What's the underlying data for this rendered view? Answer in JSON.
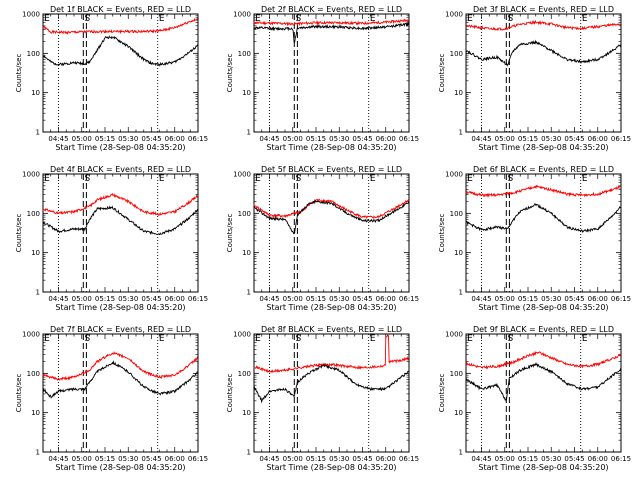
{
  "chart_data": [
    {
      "type": "line",
      "title": "Det 1f BLACK = Events, RED = LLD",
      "xlabel": "Start Time (28-Sep-08 04:35:20)",
      "ylabel": "Counts/sec",
      "yscale": "log",
      "ylim": [
        1,
        1000
      ],
      "xlim": [
        "04:35",
        "06:15"
      ],
      "yticks": [
        "1",
        "10",
        "100",
        "1000"
      ],
      "xticks": [
        "04:45",
        "05:00",
        "05:15",
        "05:30",
        "05:45",
        "06:00",
        "06:15"
      ],
      "markers": [
        "E",
        "S",
        "E"
      ],
      "dotted_lines": [
        "04:45",
        "05:49"
      ],
      "dashed_lines": [
        "05:01",
        "05:03"
      ],
      "series": [
        {
          "color": "#ff0000",
          "x": [
            "04:35",
            "04:40",
            "04:50",
            "05:00",
            "05:10",
            "05:20",
            "05:30",
            "05:40",
            "05:50",
            "06:00",
            "06:10",
            "06:15"
          ],
          "values": [
            480,
            350,
            340,
            350,
            360,
            360,
            360,
            360,
            370,
            450,
            650,
            720
          ]
        },
        {
          "color": "#000000",
          "x": [
            "04:35",
            "04:40",
            "04:45",
            "04:55",
            "05:02",
            "05:05",
            "05:10",
            "05:15",
            "05:20",
            "05:30",
            "05:40",
            "05:45",
            "05:50",
            "06:00",
            "06:10",
            "06:15"
          ],
          "values": [
            90,
            60,
            52,
            58,
            55,
            60,
            120,
            250,
            260,
            150,
            70,
            55,
            52,
            60,
            110,
            160
          ]
        }
      ]
    },
    {
      "type": "line",
      "title": "Det 2f BLACK = Events, RED = LLD",
      "xlabel": "Start Time (28-Sep-08 04:35:20)",
      "ylabel": "Counts/sec",
      "yscale": "log",
      "ylim": [
        1,
        1000
      ],
      "xlim": [
        "04:35",
        "06:15"
      ],
      "yticks": [
        "1",
        "10",
        "100",
        "1000"
      ],
      "xticks": [
        "04:45",
        "05:00",
        "05:15",
        "05:30",
        "05:45",
        "06:00",
        "06:15"
      ],
      "markers": [
        "E",
        "S",
        "E"
      ],
      "dotted_lines": [
        "04:45",
        "05:49"
      ],
      "dashed_lines": [
        "05:01",
        "05:03"
      ],
      "series": [
        {
          "color": "#ff0000",
          "x": [
            "04:35",
            "04:50",
            "05:00",
            "05:15",
            "05:30",
            "05:45",
            "06:00",
            "06:15"
          ],
          "values": [
            600,
            580,
            560,
            600,
            600,
            580,
            620,
            700
          ]
        },
        {
          "color": "#000000",
          "x": [
            "04:35",
            "04:50",
            "05:00",
            "05:01",
            "05:03",
            "05:15",
            "05:30",
            "05:45",
            "06:00",
            "06:15"
          ],
          "values": [
            450,
            420,
            430,
            180,
            440,
            480,
            470,
            430,
            470,
            560
          ]
        }
      ]
    },
    {
      "type": "line",
      "title": "Det 3f BLACK = Events, RED = LLD",
      "xlabel": "Start Time (28-Sep-08 04:35:20)",
      "ylabel": "Counts/sec",
      "yscale": "log",
      "ylim": [
        1,
        1000
      ],
      "xlim": [
        "04:35",
        "06:15"
      ],
      "yticks": [
        "1",
        "10",
        "100",
        "1000"
      ],
      "xticks": [
        "04:45",
        "05:00",
        "05:15",
        "05:30",
        "05:45",
        "06:00",
        "06:15"
      ],
      "markers": [
        "E",
        "S",
        "E"
      ],
      "dotted_lines": [
        "04:45",
        "05:49"
      ],
      "dashed_lines": [
        "05:01",
        "05:03"
      ],
      "series": [
        {
          "color": "#ff0000",
          "x": [
            "04:35",
            "04:50",
            "05:00",
            "05:10",
            "05:20",
            "05:30",
            "05:40",
            "05:50",
            "06:00",
            "06:15"
          ],
          "values": [
            500,
            420,
            420,
            550,
            620,
            560,
            450,
            430,
            480,
            560
          ]
        },
        {
          "color": "#000000",
          "x": [
            "04:35",
            "04:45",
            "04:55",
            "05:02",
            "05:05",
            "05:10",
            "05:20",
            "05:30",
            "05:40",
            "05:50",
            "06:00",
            "06:10",
            "06:15"
          ],
          "values": [
            120,
            70,
            80,
            50,
            110,
            170,
            190,
            120,
            70,
            60,
            70,
            120,
            170
          ]
        }
      ]
    },
    {
      "type": "line",
      "title": "Det 4f BLACK = Events, RED = LLD",
      "xlabel": "Start Time (28-Sep-08 04:35:20)",
      "ylabel": "Counts/sec",
      "yscale": "log",
      "ylim": [
        1,
        1000
      ],
      "xlim": [
        "04:35",
        "06:15"
      ],
      "yticks": [
        "1",
        "10",
        "100",
        "1000"
      ],
      "xticks": [
        "04:45",
        "05:00",
        "05:15",
        "05:30",
        "05:45",
        "06:00",
        "06:15"
      ],
      "markers": [
        "E",
        "S",
        "E"
      ],
      "dotted_lines": [
        "04:45",
        "05:49"
      ],
      "dashed_lines": [
        "05:01",
        "05:03"
      ],
      "series": [
        {
          "color": "#ff0000",
          "x": [
            "04:35",
            "04:45",
            "04:55",
            "05:05",
            "05:10",
            "05:20",
            "05:30",
            "05:40",
            "05:50",
            "06:00",
            "06:10",
            "06:15"
          ],
          "values": [
            130,
            100,
            110,
            150,
            220,
            300,
            200,
            110,
            95,
            110,
            200,
            280
          ]
        },
        {
          "color": "#000000",
          "x": [
            "04:35",
            "04:45",
            "04:55",
            "05:02",
            "05:05",
            "05:10",
            "05:20",
            "05:30",
            "05:40",
            "05:50",
            "06:00",
            "06:10",
            "06:15"
          ],
          "values": [
            60,
            35,
            40,
            40,
            70,
            130,
            140,
            70,
            35,
            30,
            40,
            80,
            130
          ]
        }
      ]
    },
    {
      "type": "line",
      "title": "Det 5f BLACK = Events, RED = LLD",
      "xlabel": "Start Time (28-Sep-08 04:35:20)",
      "ylabel": "Counts/sec",
      "yscale": "log",
      "ylim": [
        1,
        1000
      ],
      "xlim": [
        "04:35",
        "06:15"
      ],
      "yticks": [
        "1",
        "10",
        "100",
        "1000"
      ],
      "xticks": [
        "04:45",
        "05:00",
        "05:15",
        "05:30",
        "05:45",
        "06:00",
        "06:15"
      ],
      "markers": [
        "E",
        "S",
        "E"
      ],
      "dotted_lines": [
        "04:45",
        "05:49"
      ],
      "dashed_lines": [
        "05:01",
        "05:03"
      ],
      "series": [
        {
          "color": "#ff0000",
          "x": [
            "04:35",
            "04:45",
            "04:55",
            "05:05",
            "05:15",
            "05:25",
            "05:35",
            "05:45",
            "05:55",
            "06:05",
            "06:15"
          ],
          "values": [
            160,
            90,
            85,
            110,
            220,
            200,
            120,
            80,
            80,
            130,
            220
          ]
        },
        {
          "color": "#000000",
          "x": [
            "04:35",
            "04:45",
            "04:55",
            "05:01",
            "05:03",
            "05:10",
            "05:15",
            "05:25",
            "05:35",
            "05:45",
            "05:55",
            "06:05",
            "06:15"
          ],
          "values": [
            140,
            75,
            70,
            30,
            90,
            170,
            200,
            180,
            100,
            65,
            65,
            110,
            190
          ]
        }
      ]
    },
    {
      "type": "line",
      "title": "Det 6f BLACK = Events, RED = LLD",
      "xlabel": "Start Time (28-Sep-08 04:35:20)",
      "ylabel": "Counts/sec",
      "yscale": "log",
      "ylim": [
        1,
        1000
      ],
      "xlim": [
        "04:35",
        "06:15"
      ],
      "yticks": [
        "1",
        "10",
        "100",
        "1000"
      ],
      "xticks": [
        "04:45",
        "05:00",
        "05:15",
        "05:30",
        "05:45",
        "06:00",
        "06:15"
      ],
      "markers": [
        "E",
        "S",
        "E"
      ],
      "dotted_lines": [
        "04:45",
        "05:49"
      ],
      "dashed_lines": [
        "05:01",
        "05:03"
      ],
      "series": [
        {
          "color": "#ff0000",
          "x": [
            "04:35",
            "04:45",
            "04:55",
            "05:05",
            "05:15",
            "05:20",
            "05:30",
            "05:40",
            "05:50",
            "06:00",
            "06:10",
            "06:15"
          ],
          "values": [
            350,
            290,
            290,
            330,
            420,
            480,
            400,
            310,
            290,
            310,
            400,
            480
          ]
        },
        {
          "color": "#000000",
          "x": [
            "04:35",
            "04:45",
            "04:55",
            "05:02",
            "05:05",
            "05:10",
            "05:20",
            "05:30",
            "05:40",
            "05:50",
            "06:00",
            "06:10",
            "06:15"
          ],
          "values": [
            60,
            38,
            45,
            40,
            65,
            110,
            170,
            100,
            45,
            35,
            40,
            90,
            150
          ]
        }
      ]
    },
    {
      "type": "line",
      "title": "Det 7f BLACK = Events, RED = LLD",
      "xlabel": "Start Time (28-Sep-08 04:35:20)",
      "ylabel": "Counts/sec",
      "yscale": "log",
      "ylim": [
        1,
        1000
      ],
      "xlim": [
        "04:35",
        "06:15"
      ],
      "yticks": [
        "1",
        "10",
        "100",
        "1000"
      ],
      "xticks": [
        "04:45",
        "05:00",
        "05:15",
        "05:30",
        "05:45",
        "06:00",
        "06:15"
      ],
      "markers": [
        "E",
        "S",
        "E"
      ],
      "dotted_lines": [
        "04:45",
        "05:49"
      ],
      "dashed_lines": [
        "05:01",
        "05:03"
      ],
      "series": [
        {
          "color": "#ff0000",
          "x": [
            "04:35",
            "04:45",
            "04:55",
            "05:05",
            "05:10",
            "05:20",
            "05:30",
            "05:40",
            "05:50",
            "06:00",
            "06:10",
            "06:15"
          ],
          "values": [
            90,
            70,
            80,
            120,
            200,
            330,
            240,
            110,
            80,
            90,
            170,
            250
          ]
        },
        {
          "color": "#000000",
          "x": [
            "04:35",
            "04:40",
            "04:45",
            "04:55",
            "05:02",
            "05:05",
            "05:10",
            "05:20",
            "05:30",
            "05:40",
            "05:50",
            "06:00",
            "06:10",
            "06:15"
          ],
          "values": [
            40,
            25,
            35,
            40,
            40,
            60,
            110,
            190,
            110,
            45,
            30,
            35,
            70,
            110
          ]
        }
      ]
    },
    {
      "type": "line",
      "title": "Det 8f BLACK = Events, RED = LLD",
      "xlabel": "Start Time (28-Sep-08 04:35:20)",
      "ylabel": "Counts/sec",
      "yscale": "log",
      "ylim": [
        1,
        1000
      ],
      "xlim": [
        "04:35",
        "06:15"
      ],
      "yticks": [
        "1",
        "10",
        "100",
        "1000"
      ],
      "xticks": [
        "04:45",
        "05:00",
        "05:15",
        "05:30",
        "05:45",
        "06:00",
        "06:15"
      ],
      "markers": [
        "E",
        "S",
        "E"
      ],
      "dotted_lines": [
        "04:45",
        "05:49"
      ],
      "dashed_lines": [
        "05:01",
        "05:03"
      ],
      "series": [
        {
          "color": "#ff0000",
          "x": [
            "04:35",
            "04:45",
            "04:55",
            "05:05",
            "05:15",
            "05:25",
            "05:35",
            "05:45",
            "05:55",
            "06:00",
            "06:00",
            "06:02",
            "06:02",
            "06:10",
            "06:15"
          ],
          "values": [
            150,
            110,
            120,
            140,
            160,
            170,
            150,
            140,
            150,
            160,
            900,
            900,
            200,
            210,
            250
          ]
        },
        {
          "color": "#000000",
          "x": [
            "04:35",
            "04:40",
            "04:45",
            "04:55",
            "05:01",
            "05:03",
            "05:10",
            "05:20",
            "05:30",
            "05:40",
            "05:50",
            "06:00",
            "06:10",
            "06:15"
          ],
          "values": [
            45,
            20,
            35,
            40,
            25,
            60,
            100,
            160,
            120,
            55,
            40,
            40,
            80,
            110
          ]
        }
      ]
    },
    {
      "type": "line",
      "title": "Det 9f BLACK = Events, RED = LLD",
      "xlabel": "Start Time (28-Sep-08 04:35:20)",
      "ylabel": "Counts/sec",
      "yscale": "log",
      "ylim": [
        1,
        1000
      ],
      "xlim": [
        "04:35",
        "06:15"
      ],
      "yticks": [
        "1",
        "10",
        "100",
        "1000"
      ],
      "xticks": [
        "04:45",
        "05:00",
        "05:15",
        "05:30",
        "05:45",
        "06:00",
        "06:15"
      ],
      "markers": [
        "E",
        "S",
        "E"
      ],
      "dotted_lines": [
        "04:45",
        "05:49"
      ],
      "dashed_lines": [
        "05:01",
        "05:03"
      ],
      "series": [
        {
          "color": "#ff0000",
          "x": [
            "04:35",
            "04:45",
            "04:55",
            "05:05",
            "05:15",
            "05:22",
            "05:30",
            "05:40",
            "05:50",
            "06:00",
            "06:10",
            "06:15"
          ],
          "values": [
            180,
            140,
            150,
            190,
            280,
            340,
            250,
            170,
            150,
            170,
            240,
            300
          ]
        },
        {
          "color": "#000000",
          "x": [
            "04:35",
            "04:45",
            "04:55",
            "05:01",
            "05:03",
            "05:10",
            "05:20",
            "05:30",
            "05:40",
            "05:50",
            "06:00",
            "06:10",
            "06:15"
          ],
          "values": [
            70,
            40,
            50,
            20,
            75,
            120,
            170,
            110,
            55,
            40,
            45,
            90,
            130
          ]
        }
      ]
    }
  ]
}
